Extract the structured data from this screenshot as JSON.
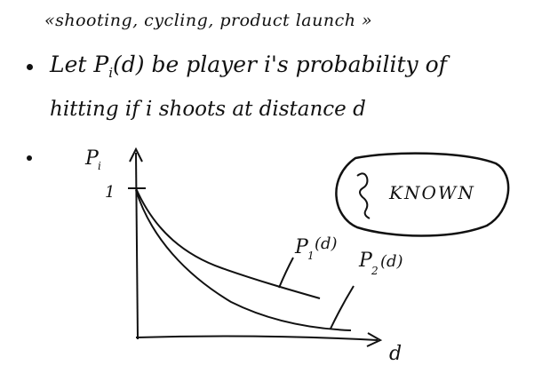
{
  "header": {
    "text": "«shooting, cycling, product launch »"
  },
  "bullets": {
    "line1": {
      "lead": "Let P",
      "sub": "i",
      "rest": "(d)  be player i's probability of"
    },
    "line2": {
      "text": "hitting  if i shoots  at distance d"
    }
  },
  "graph": {
    "y_axis_label": "P",
    "y_axis_sub": "i",
    "y_tick_label": "1",
    "x_axis_label": "d",
    "curve1_label": "P",
    "curve1_sub": "1",
    "curve1_arg": "(d)",
    "curve2_label": "P",
    "curve2_sub": "2",
    "curve2_arg": "(d)",
    "known_label": "KNOWN"
  }
}
